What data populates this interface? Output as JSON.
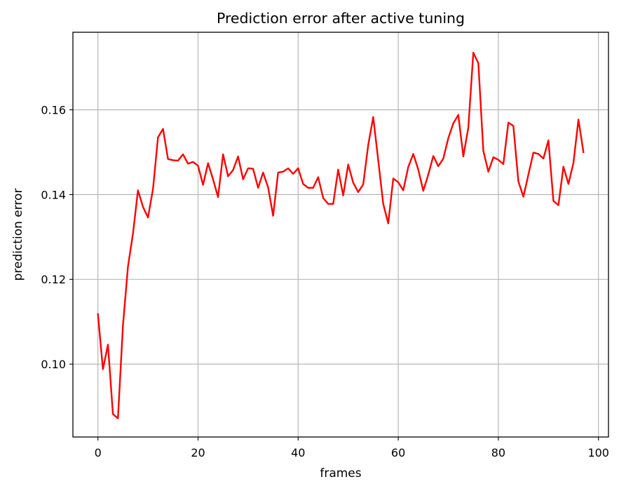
{
  "chart_data": {
    "type": "line",
    "title": "Prediction error after active tuning",
    "xlabel": "frames",
    "ylabel": "prediction error",
    "xlim": [
      -5,
      102
    ],
    "ylim": [
      0.0828,
      0.1783
    ],
    "x_ticks": [
      0,
      20,
      40,
      60,
      80,
      100
    ],
    "y_ticks": [
      0.1,
      0.12,
      0.14,
      0.16
    ],
    "x_tick_labels": [
      "0",
      "20",
      "40",
      "60",
      "80",
      "100"
    ],
    "y_tick_labels": [
      "0.10",
      "0.12",
      "0.14",
      "0.16"
    ],
    "grid": true,
    "series": [
      {
        "color": "#ff0000",
        "x": [
          0,
          1,
          2,
          3,
          4,
          5,
          6,
          7,
          8,
          9,
          10,
          11,
          12,
          13,
          14,
          15,
          16,
          17,
          18,
          19,
          20,
          21,
          22,
          23,
          24,
          25,
          26,
          27,
          28,
          29,
          30,
          31,
          32,
          33,
          34,
          35,
          36,
          37,
          38,
          39,
          40,
          41,
          42,
          43,
          44,
          45,
          46,
          47,
          48,
          49,
          50,
          51,
          52,
          53,
          54,
          55,
          56,
          57,
          58,
          59,
          60,
          61,
          62,
          63,
          64,
          65,
          66,
          67,
          68,
          69,
          70,
          71,
          72,
          73,
          74,
          75,
          76,
          77,
          78,
          79,
          80,
          81,
          82,
          83,
          84,
          85,
          86,
          87,
          88,
          89,
          90,
          91,
          92,
          93,
          94,
          95,
          96,
          97
        ],
        "y": [
          0.1118,
          0.0988,
          0.1046,
          0.0882,
          0.0872,
          0.1091,
          0.123,
          0.1308,
          0.141,
          0.1371,
          0.1346,
          0.1413,
          0.1535,
          0.1555,
          0.1484,
          0.1481,
          0.148,
          0.1495,
          0.1473,
          0.1477,
          0.1468,
          0.1423,
          0.1474,
          0.1436,
          0.1394,
          0.1495,
          0.1443,
          0.1458,
          0.149,
          0.1436,
          0.1462,
          0.1461,
          0.1416,
          0.1452,
          0.1417,
          0.135,
          0.1452,
          0.1454,
          0.1462,
          0.1449,
          0.1462,
          0.1425,
          0.1416,
          0.1416,
          0.1441,
          0.1392,
          0.1378,
          0.1378,
          0.1459,
          0.1398,
          0.1471,
          0.1428,
          0.1406,
          0.1424,
          0.1517,
          0.1583,
          0.1481,
          0.1378,
          0.1332,
          0.1438,
          0.1429,
          0.141,
          0.1465,
          0.1496,
          0.1459,
          0.1409,
          0.1447,
          0.1491,
          0.1467,
          0.1485,
          0.1533,
          0.1568,
          0.1588,
          0.149,
          0.1558,
          0.1735,
          0.171,
          0.1503,
          0.1454,
          0.1488,
          0.1482,
          0.1472,
          0.157,
          0.1562,
          0.1431,
          0.1395,
          0.1447,
          0.1499,
          0.1496,
          0.1485,
          0.1528,
          0.1385,
          0.1375,
          0.1466,
          0.1425,
          0.1475,
          0.1577,
          0.15
        ]
      }
    ]
  }
}
